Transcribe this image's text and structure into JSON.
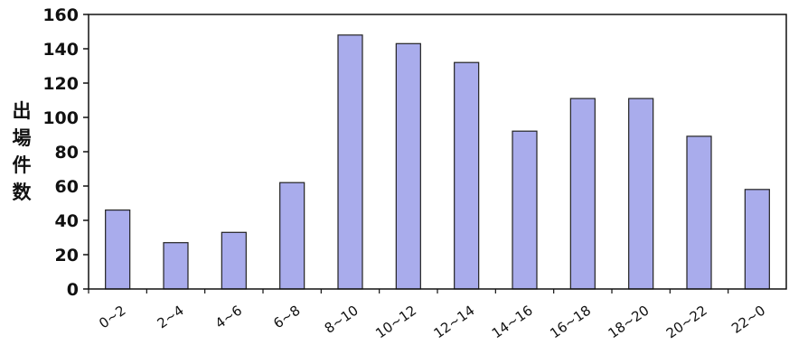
{
  "chart_data": {
    "type": "bar",
    "title": "",
    "xlabel": "",
    "ylabel": "出場件数",
    "ylim": [
      0,
      160
    ],
    "yticks": [
      0,
      20,
      40,
      60,
      80,
      100,
      120,
      140,
      160
    ],
    "grid": false,
    "categories": [
      "0~2",
      "2~4",
      "4~6",
      "6~8",
      "8~10",
      "10~12",
      "12~14",
      "14~16",
      "16~18",
      "18~20",
      "20~22",
      "22~0"
    ],
    "values": [
      46,
      27,
      33,
      62,
      148,
      143,
      132,
      92,
      111,
      111,
      89,
      58
    ],
    "colors": {
      "bar_fill": "#a9acec",
      "bar_stroke": "#222222",
      "axis": "#111111"
    }
  }
}
